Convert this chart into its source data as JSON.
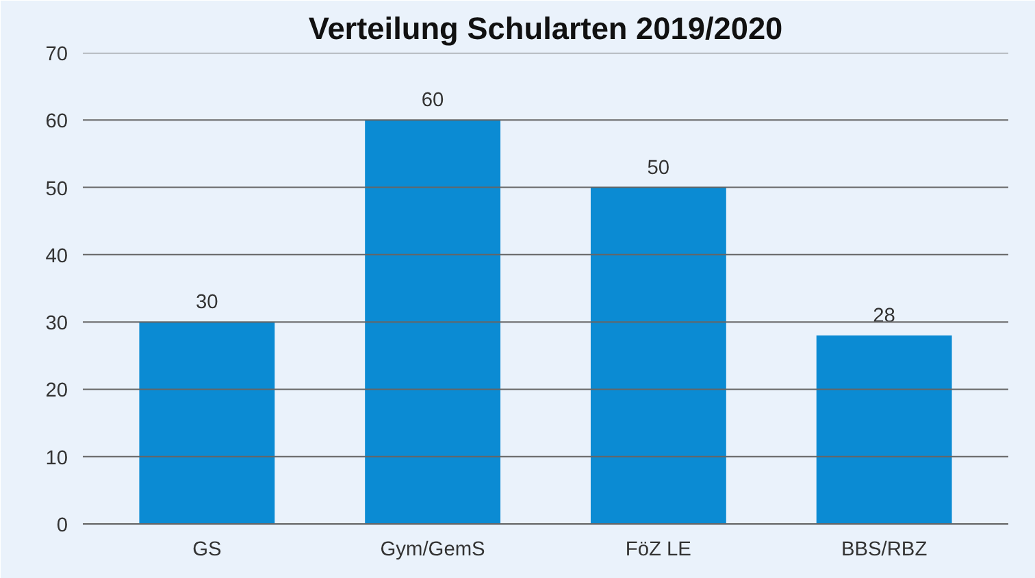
{
  "chart_data": {
    "type": "bar",
    "title": "Verteilung Schularten 2019/2020",
    "categories": [
      "GS",
      "Gym/GemS",
      "FöZ LE",
      "BBS/RBZ"
    ],
    "values": [
      30,
      60,
      50,
      28
    ],
    "color": "#0b8bd3",
    "ylim": [
      0,
      70
    ],
    "yticks": [
      0,
      10,
      20,
      30,
      40,
      50,
      60,
      70
    ],
    "grid": "y",
    "data_labels": true
  }
}
